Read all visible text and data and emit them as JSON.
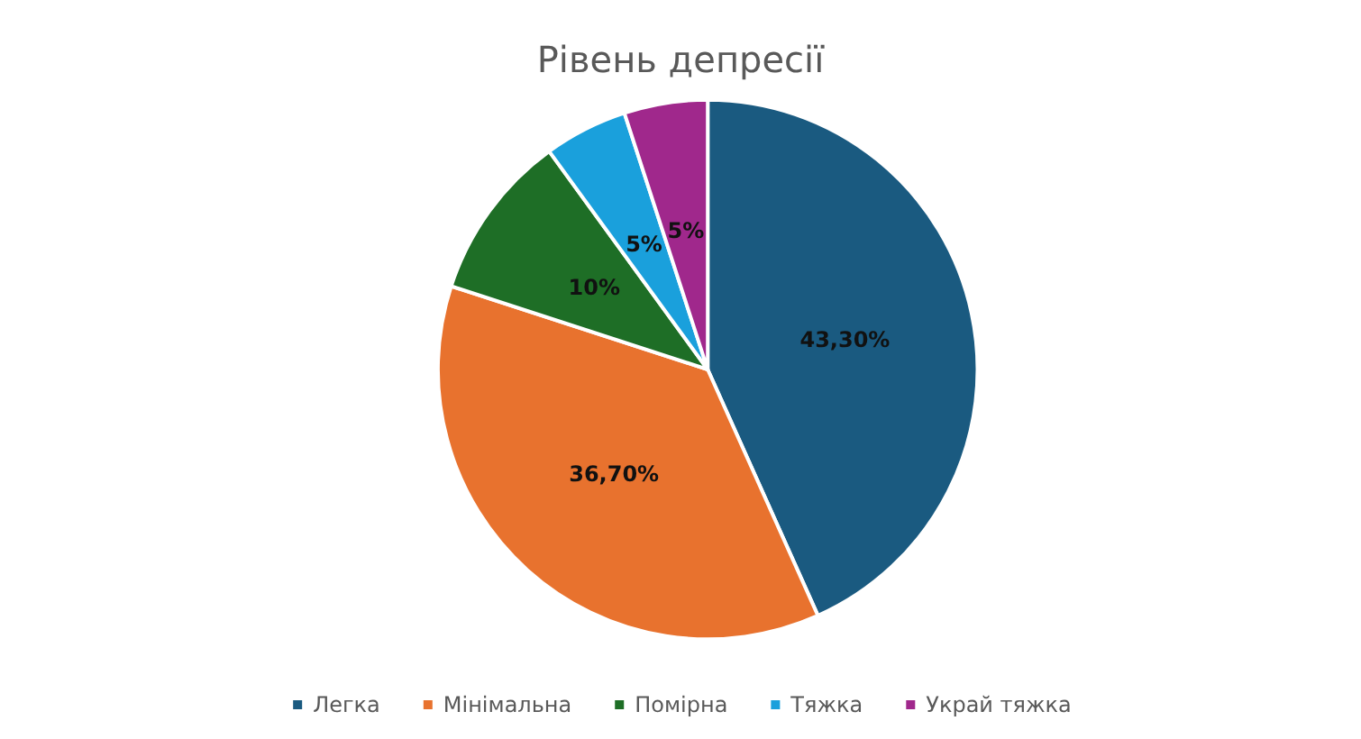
{
  "chart_data": {
    "type": "pie",
    "title": "Рівень депресії",
    "categories": [
      "Легка",
      "Мінімальна",
      "Помірна",
      "Тяжка",
      "Украй тяжка"
    ],
    "values": [
      43.3,
      36.7,
      10,
      5,
      5
    ],
    "colors": [
      "#1a5a80",
      "#e8722e",
      "#1e6e26",
      "#1aa0dc",
      "#a0288c"
    ],
    "value_labels": [
      "43,30%",
      "36,70%",
      "10%",
      "5%",
      "5%"
    ],
    "legend": "bottom"
  }
}
